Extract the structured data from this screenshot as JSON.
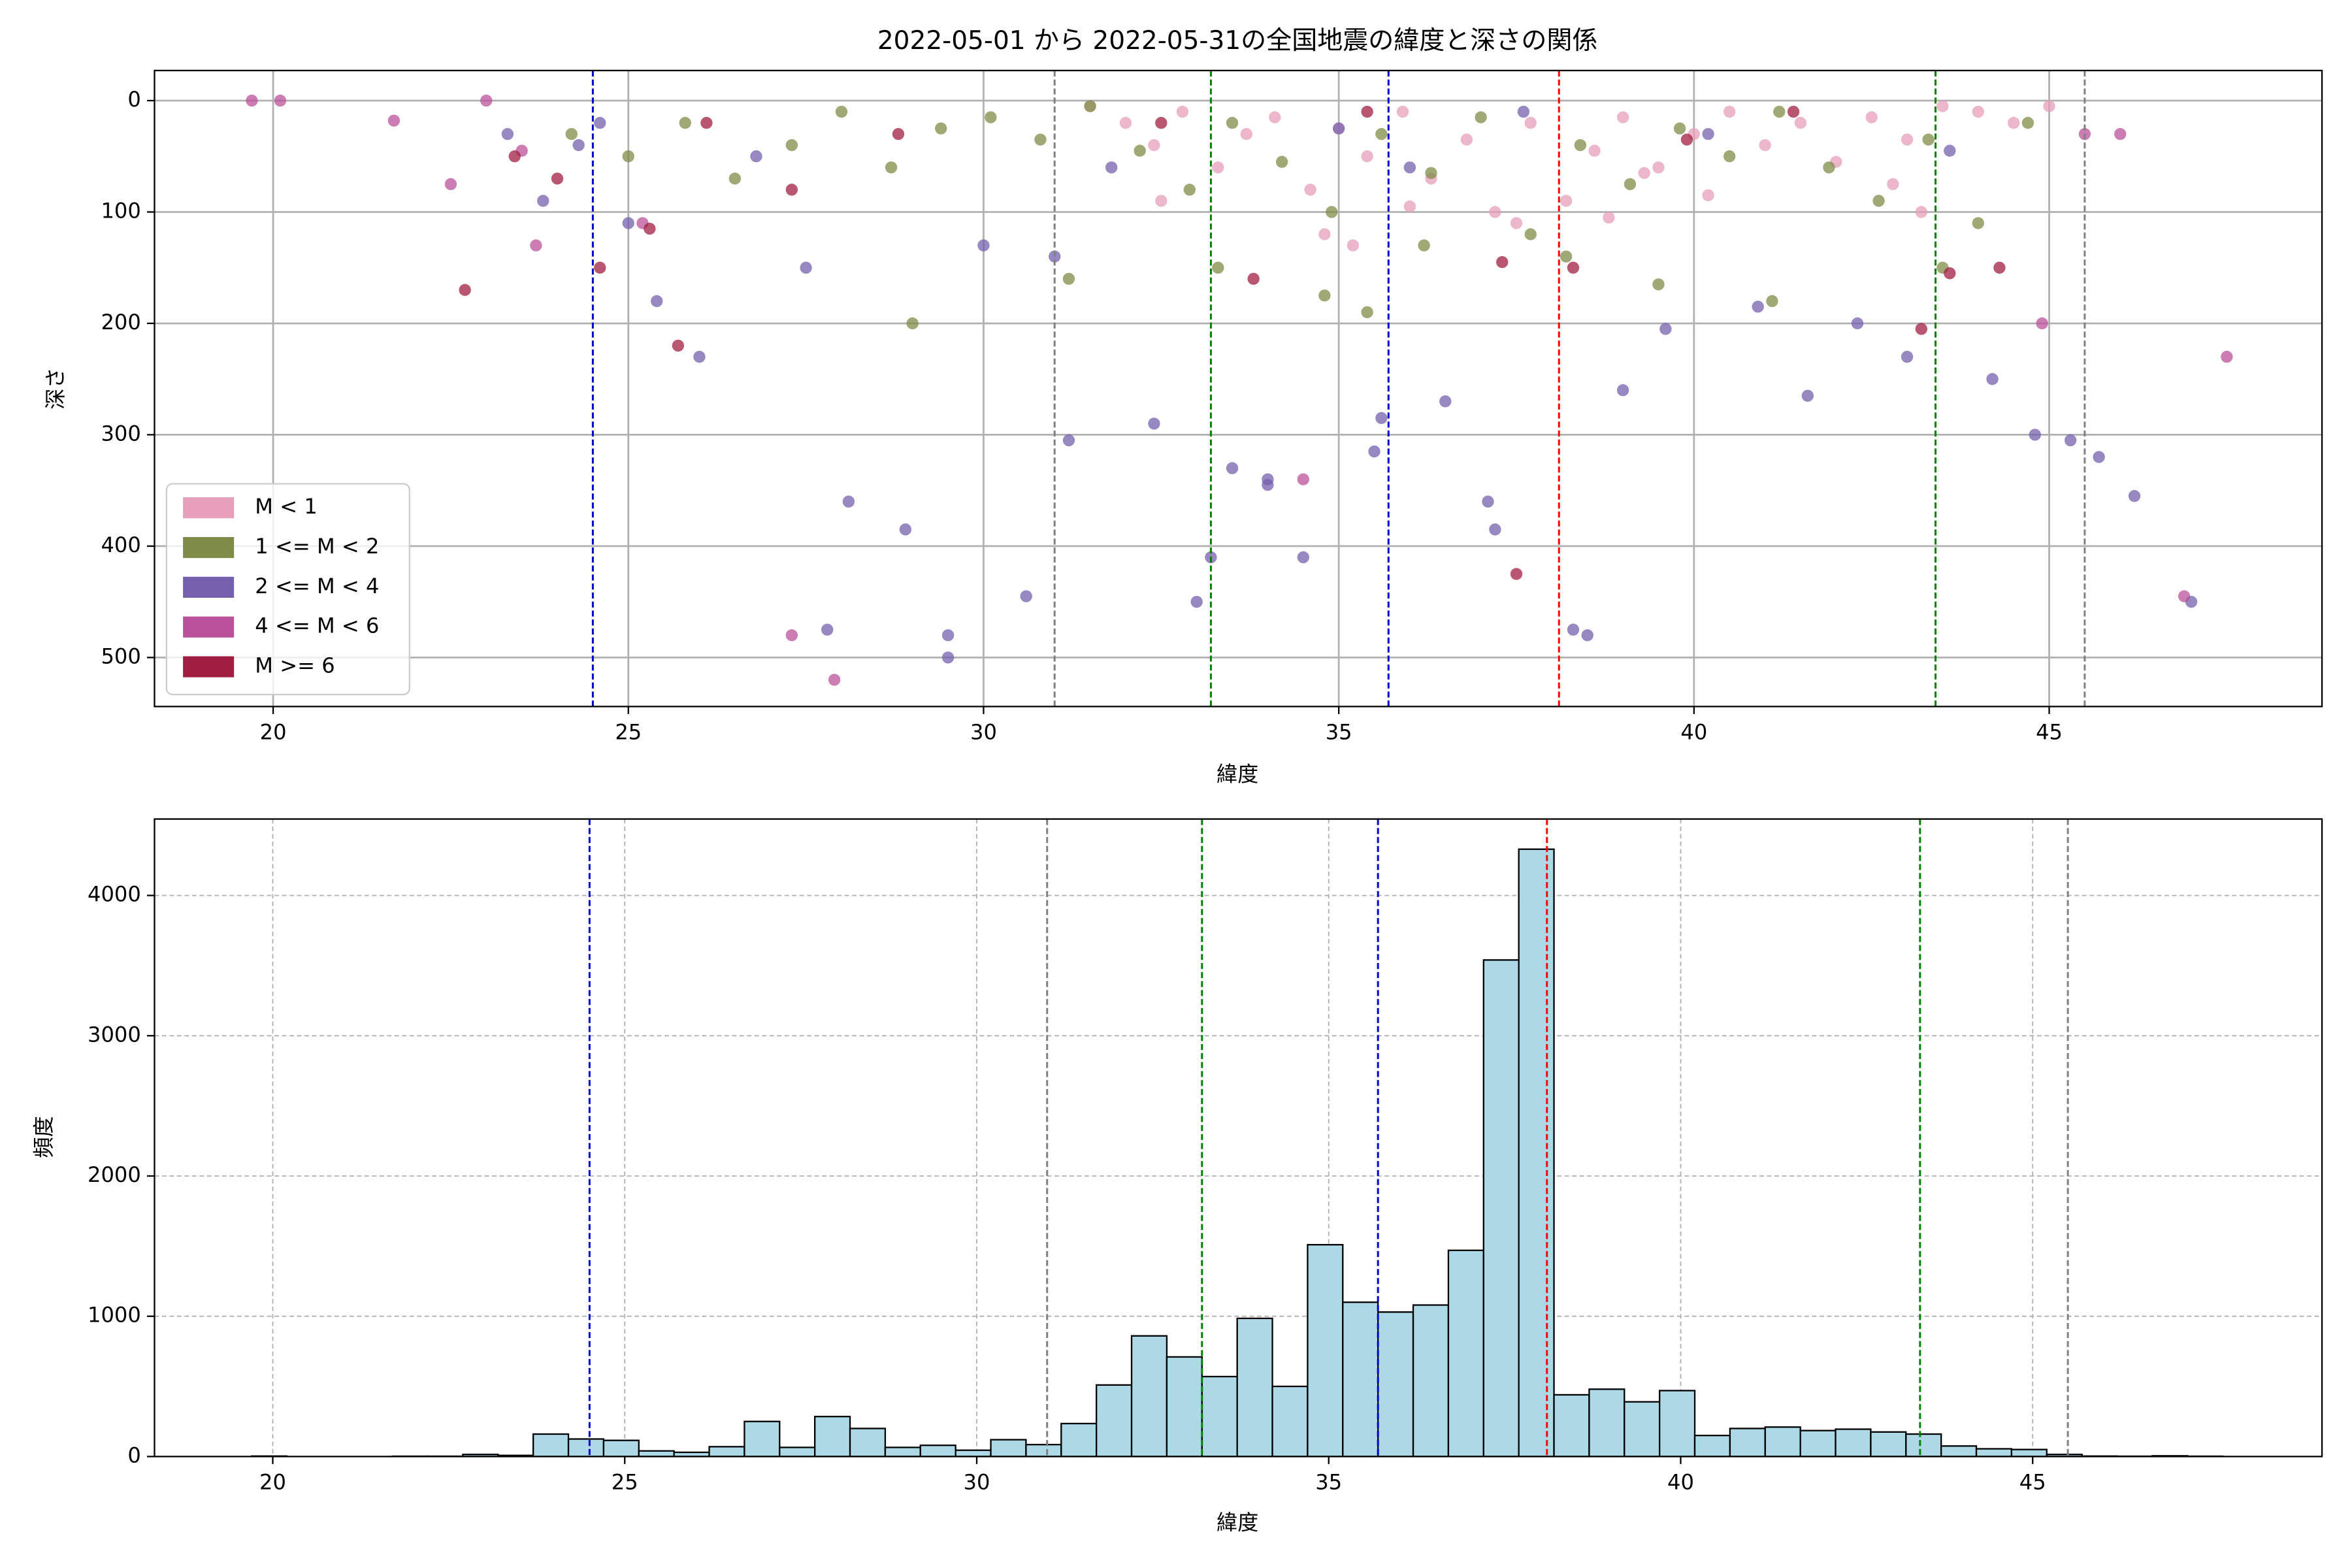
{
  "chart_data": [
    {
      "type": "scatter",
      "title": "2022-05-01 から 2022-05-31の全国地震の緯度と深さの関係",
      "xlabel": "緯度",
      "ylabel": "深さ",
      "xlim": [
        18.33,
        48.84
      ],
      "ylim": [
        -27,
        544
      ],
      "y_inverted": true,
      "xticks": [
        20,
        25,
        30,
        35,
        40,
        45
      ],
      "yticks": [
        0,
        100,
        200,
        300,
        400,
        500
      ],
      "grid": true,
      "legend": "lower left",
      "alpha": 0.75,
      "vlines": [
        {
          "x": 24.5,
          "color": "#0000cc"
        },
        {
          "x": 31.0,
          "color": "#808080"
        },
        {
          "x": 33.2,
          "color": "#008000"
        },
        {
          "x": 35.7,
          "color": "#0000cc"
        },
        {
          "x": 38.1,
          "color": "#ff0000"
        },
        {
          "x": 43.4,
          "color": "#008000"
        },
        {
          "x": 45.5,
          "color": "#808080"
        }
      ],
      "series": [
        {
          "name": "M < 1",
          "color": "#e79fba",
          "x": [
            31.5,
            32.0,
            32.4,
            32.8,
            33.3,
            33.7,
            34.1,
            34.6,
            35.0,
            35.4,
            35.9,
            36.3,
            36.8,
            37.2,
            37.7,
            38.2,
            38.6,
            39.0,
            39.5,
            40.0,
            40.5,
            41.0,
            41.5,
            42.0,
            42.5,
            43.0,
            43.5,
            44.0,
            44.5,
            45.0,
            34.8,
            36.0,
            37.5,
            38.8,
            40.2,
            42.8,
            32.5,
            35.2,
            39.3,
            43.2
          ],
          "values": [
            5,
            20,
            40,
            10,
            60,
            30,
            15,
            80,
            25,
            50,
            10,
            70,
            35,
            100,
            20,
            90,
            45,
            15,
            60,
            30,
            10,
            40,
            20,
            55,
            15,
            35,
            5,
            10,
            20,
            5,
            120,
            95,
            110,
            105,
            85,
            75,
            90,
            130,
            65,
            100
          ]
        },
        {
          "name": "1 <= M < 2",
          "color": "#7d8c47",
          "x": [
            24.2,
            25.0,
            25.8,
            26.5,
            27.3,
            28.0,
            28.7,
            29.4,
            30.1,
            30.8,
            31.5,
            32.2,
            32.9,
            33.5,
            34.2,
            34.9,
            35.6,
            36.3,
            37.0,
            37.7,
            38.4,
            39.1,
            39.8,
            40.5,
            41.2,
            41.9,
            42.6,
            43.3,
            44.0,
            44.7,
            29.0,
            31.2,
            33.3,
            34.8,
            35.4,
            36.2,
            38.2,
            39.5,
            41.1,
            43.5
          ],
          "values": [
            30,
            50,
            20,
            70,
            40,
            10,
            60,
            25,
            15,
            35,
            5,
            45,
            80,
            20,
            55,
            100,
            30,
            65,
            15,
            120,
            40,
            75,
            25,
            50,
            10,
            60,
            90,
            35,
            110,
            20,
            200,
            160,
            150,
            175,
            190,
            130,
            140,
            165,
            180,
            150
          ]
        },
        {
          "name": "2 <= M < 4",
          "color": "#7560ad",
          "x": [
            23.3,
            23.8,
            24.3,
            24.6,
            25.0,
            25.4,
            26.0,
            26.8,
            27.5,
            28.1,
            28.9,
            29.5,
            30.0,
            30.6,
            31.2,
            31.8,
            32.4,
            33.0,
            33.5,
            34.0,
            34.5,
            35.0,
            35.5,
            36.0,
            36.5,
            37.1,
            37.6,
            38.3,
            39.0,
            39.6,
            40.2,
            40.9,
            41.6,
            42.3,
            43.0,
            43.6,
            44.2,
            44.8,
            45.3,
            45.7,
            46.2,
            47.0,
            27.8,
            29.5,
            33.2,
            34.0,
            37.2,
            38.5,
            31.0,
            35.6
          ],
          "values": [
            30,
            90,
            40,
            20,
            110,
            180,
            230,
            50,
            150,
            360,
            385,
            500,
            130,
            445,
            305,
            60,
            290,
            450,
            330,
            345,
            410,
            25,
            315,
            60,
            270,
            360,
            10,
            475,
            260,
            205,
            30,
            185,
            265,
            200,
            230,
            45,
            250,
            300,
            305,
            320,
            355,
            450,
            475,
            480,
            410,
            340,
            385,
            480,
            140,
            285
          ]
        },
        {
          "name": "4 <= M < 6",
          "color": "#b9519b",
          "x": [
            19.7,
            20.1,
            21.7,
            22.5,
            23.0,
            23.7,
            25.2,
            27.3,
            27.9,
            34.5,
            44.9,
            45.5,
            46.0,
            46.9,
            47.5,
            23.5
          ],
          "values": [
            0,
            0,
            18,
            75,
            0,
            130,
            110,
            480,
            520,
            340,
            200,
            30,
            30,
            445,
            230,
            45
          ]
        },
        {
          "name": "M >= 6",
          "color": "#a11d42",
          "x": [
            22.7,
            23.4,
            24.0,
            24.6,
            25.3,
            25.7,
            27.3,
            28.8,
            32.5,
            33.8,
            37.3,
            37.5,
            38.3,
            39.9,
            41.4,
            43.2,
            43.6,
            44.3,
            26.1,
            35.4
          ],
          "values": [
            170,
            50,
            70,
            150,
            115,
            220,
            80,
            30,
            20,
            160,
            145,
            425,
            150,
            35,
            10,
            205,
            155,
            150,
            20,
            10
          ]
        }
      ]
    },
    {
      "type": "histogram",
      "xlabel": "緯度",
      "ylabel": "頻度",
      "xlim": [
        18.32,
        49.11
      ],
      "ylim": [
        0,
        4545
      ],
      "xticks": [
        20,
        25,
        30,
        35,
        40,
        45
      ],
      "yticks": [
        0,
        1000,
        2000,
        3000,
        4000
      ],
      "grid": true,
      "color": "#add8e6",
      "edgecolor": "#000000",
      "vlines": [
        {
          "x": 24.5,
          "color": "#0000cc"
        },
        {
          "x": 31.0,
          "color": "#808080"
        },
        {
          "x": 33.2,
          "color": "#008000"
        },
        {
          "x": 35.7,
          "color": "#0000cc"
        },
        {
          "x": 38.1,
          "color": "#ff0000"
        },
        {
          "x": 43.4,
          "color": "#008000"
        },
        {
          "x": 45.5,
          "color": "#808080"
        }
      ],
      "bins": [
        19.7,
        20.2,
        20.7,
        21.2,
        21.7,
        22.2,
        22.7,
        23.2,
        23.7,
        24.2,
        24.7,
        25.2,
        25.7,
        26.2,
        26.7,
        27.2,
        27.7,
        28.2,
        28.7,
        29.2,
        29.7,
        30.2,
        30.7,
        31.2,
        31.7,
        32.2,
        32.7,
        33.2,
        33.7,
        34.2,
        34.7,
        35.2,
        35.7,
        36.2,
        36.7,
        37.2,
        37.7,
        38.2,
        38.7,
        39.2,
        39.7,
        40.2,
        40.7,
        41.2,
        41.7,
        42.2,
        42.7,
        43.2,
        43.7,
        44.2,
        44.7,
        45.2,
        45.7,
        46.2,
        46.7,
        47.2,
        47.7
      ],
      "values": [
        3,
        0,
        0,
        0,
        2,
        2,
        15,
        8,
        160,
        125,
        115,
        40,
        30,
        70,
        250,
        65,
        285,
        200,
        65,
        80,
        45,
        120,
        85,
        235,
        510,
        860,
        710,
        570,
        985,
        500,
        1510,
        1100,
        1030,
        1080,
        1470,
        3540,
        4330,
        440,
        480,
        390,
        470,
        150,
        200,
        210,
        185,
        195,
        175,
        160,
        75,
        55,
        50,
        15,
        3,
        2,
        5,
        2
      ]
    }
  ]
}
